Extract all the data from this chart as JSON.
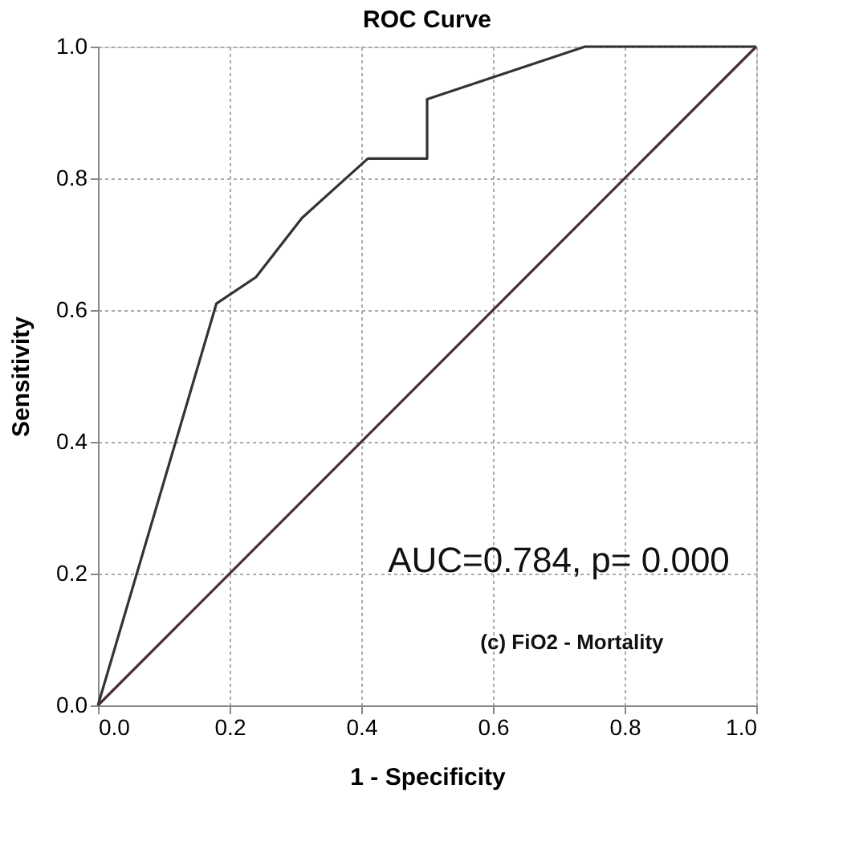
{
  "chart_data": {
    "type": "line",
    "title": "ROC Curve",
    "xlabel": "1 - Specificity",
    "ylabel": "Sensitivity",
    "series": [
      {
        "color": "#333333",
        "x": [
          0,
          0.18,
          0.24,
          0.31,
          0.41,
          0.5,
          0.5,
          0.74,
          1
        ],
        "values": [
          0,
          0.61,
          0.65,
          0.74,
          0.83,
          0.83,
          0.92,
          1,
          1
        ]
      },
      {
        "color": "#4a3030",
        "x": [
          0,
          1
        ],
        "values": [
          0,
          1
        ]
      }
    ],
    "xlim": [
      0,
      1
    ],
    "ylim": [
      0,
      1
    ],
    "xticks": [
      {
        "value": 0,
        "label": "0.0"
      },
      0.2,
      0.4,
      0.6,
      0.8,
      {
        "value": 1,
        "label": "1.0"
      }
    ],
    "yticks": [
      {
        "value": 0,
        "label": "0.0"
      },
      0.2,
      0.4,
      0.6,
      0.8,
      {
        "value": 1,
        "label": "1.0"
      }
    ],
    "grid": true,
    "marker": "none",
    "line_style": "solid",
    "annotations": [
      "AUC=0.784, p= 0.000",
      "(c) FiO2 - Mortality"
    ]
  }
}
